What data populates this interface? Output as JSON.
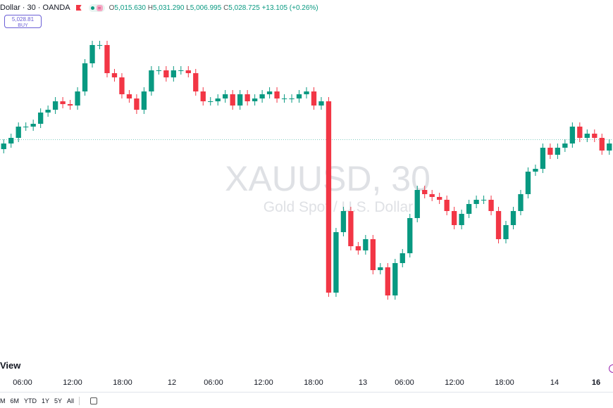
{
  "header": {
    "symbol": "Dollar · 30 · OANDA",
    "o_label": "O",
    "o": "5,015.630",
    "h_label": "H",
    "h": "5,031.290",
    "l_label": "L",
    "l": "5,006.995",
    "c_label": "C",
    "c": "5,028.725",
    "change": "+13.105 (+0.26%)"
  },
  "buy": {
    "price": "5,028.81",
    "label": "BUY"
  },
  "watermark": {
    "title": "XAUUSD, 30",
    "subtitle": "Gold Spot / U.S. Dollar"
  },
  "view_label": "View",
  "ranges": [
    "M",
    "6M",
    "YTD",
    "1Y",
    "5Y",
    "All"
  ],
  "icons": [
    "flag-icon",
    "calendar-icon"
  ],
  "colors": {
    "up": "#089981",
    "down": "#f23645",
    "accent": "#6b5fd6"
  },
  "chart_data": {
    "type": "candlestick",
    "x_ticks": [
      "06:00",
      "12:00",
      "18:00",
      "12",
      "06:00",
      "12:00",
      "18:00",
      "13",
      "06:00",
      "12:00",
      "18:00",
      "14",
      "16"
    ],
    "first_open": 5022,
    "closes": [
      5026,
      5030,
      5038,
      5038,
      5040,
      5048,
      5050,
      5056,
      5054,
      5053,
      5063,
      5083,
      5096,
      5096,
      5076,
      5073,
      5061,
      5058,
      5050,
      5063,
      5078,
      5078,
      5073,
      5078,
      5078,
      5076,
      5063,
      5056,
      5056,
      5058,
      5061,
      5053,
      5061,
      5056,
      5058,
      5061,
      5063,
      5058,
      5058,
      5058,
      5061,
      5063,
      5053,
      5056,
      4920,
      4963,
      4978,
      4953,
      4950,
      4958,
      4936,
      4938,
      4918,
      4941,
      4948,
      4973,
      4993,
      4990,
      4988,
      4986,
      4978,
      4968,
      4976,
      4983,
      4986,
      4986,
      4978,
      4958,
      4968,
      4978,
      4990,
      5006,
      5008,
      5023,
      5018,
      5023,
      5026,
      5038,
      5030,
      5033,
      5030,
      5021,
      5026
    ],
    "last_price": 5028.725,
    "grid": false
  }
}
